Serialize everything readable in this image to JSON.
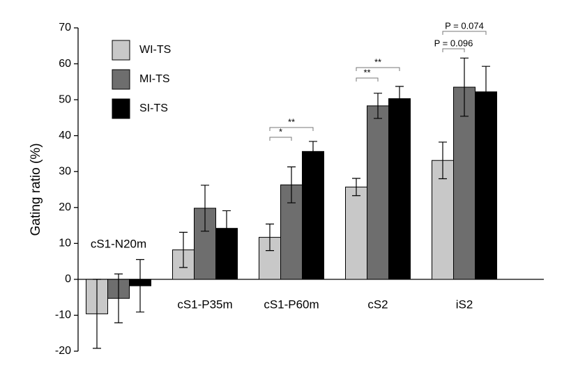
{
  "chart_data": {
    "type": "bar",
    "y_label": "Gating ratio (%)",
    "categories": [
      "cS1-N20m",
      "cS1-P35m",
      "cS1-P60m",
      "cS2",
      "iS2"
    ],
    "series": [
      {
        "name": "WI-TS",
        "color": "#c8c8c8",
        "values": [
          -9.6,
          8.2,
          11.7,
          25.7,
          33.1
        ],
        "errors": [
          9.6,
          4.9,
          3.7,
          2.4,
          5.1
        ]
      },
      {
        "name": "MI-TS",
        "color": "#6e6e6e",
        "values": [
          -5.3,
          19.8,
          26.3,
          48.3,
          53.5
        ],
        "errors": [
          6.8,
          6.4,
          5.0,
          3.5,
          8.1
        ]
      },
      {
        "name": "SI-TS",
        "color": "#000000",
        "values": [
          -1.8,
          14.2,
          35.6,
          50.3,
          52.2
        ],
        "errors": [
          7.3,
          4.9,
          2.8,
          3.4,
          7.1
        ]
      }
    ],
    "annotations": [
      "*",
      "**",
      "**",
      "**",
      "P = 0.096",
      "P = 0.074"
    ],
    "ylim": [
      -20,
      70
    ],
    "yticks": [
      -20,
      -10,
      0,
      10,
      20,
      30,
      40,
      50,
      60,
      70
    ],
    "legend": "top-left"
  }
}
